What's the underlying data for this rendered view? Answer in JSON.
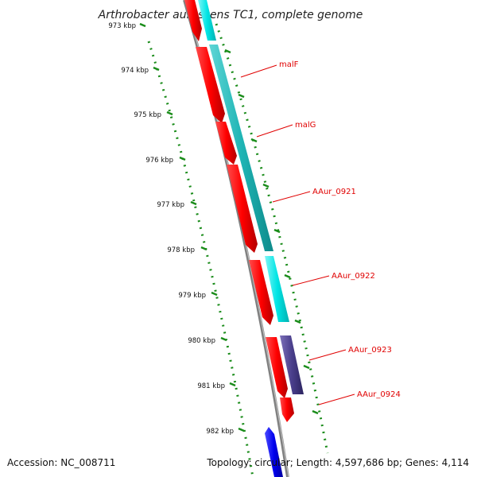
{
  "title": "Arthrobacter aurescens TC1, complete genome",
  "footer": {
    "accession": "Accession: NC_008711",
    "summary": "Topology: circular; Length: 4,597,686 bp; Genes: 4,114"
  },
  "ruler": {
    "labels": [
      "973 kbp",
      "974 kbp",
      "975 kbp",
      "976 kbp",
      "977 kbp",
      "978 kbp",
      "979 kbp",
      "980 kbp",
      "981 kbp",
      "982 kbp"
    ]
  },
  "genes": [
    {
      "name": "malF",
      "color": "#e00000"
    },
    {
      "name": "malG",
      "color": "#e00000"
    },
    {
      "name": "AAur_0921",
      "color": "#e00000"
    },
    {
      "name": "AAur_0922",
      "color": "#e00000"
    },
    {
      "name": "AAur_0923",
      "color": "#e00000"
    },
    {
      "name": "AAur_0924",
      "color": "#e00000"
    }
  ],
  "colors": {
    "cds_forward": "#ff0000",
    "cog_cyan": "#00e5e5",
    "cog_teal": "#1fb5b5",
    "cog_purple": "#4a3f8c",
    "backbone": "#808080",
    "tick": "#1a8c1a",
    "blue_feature": "#0000ee"
  }
}
